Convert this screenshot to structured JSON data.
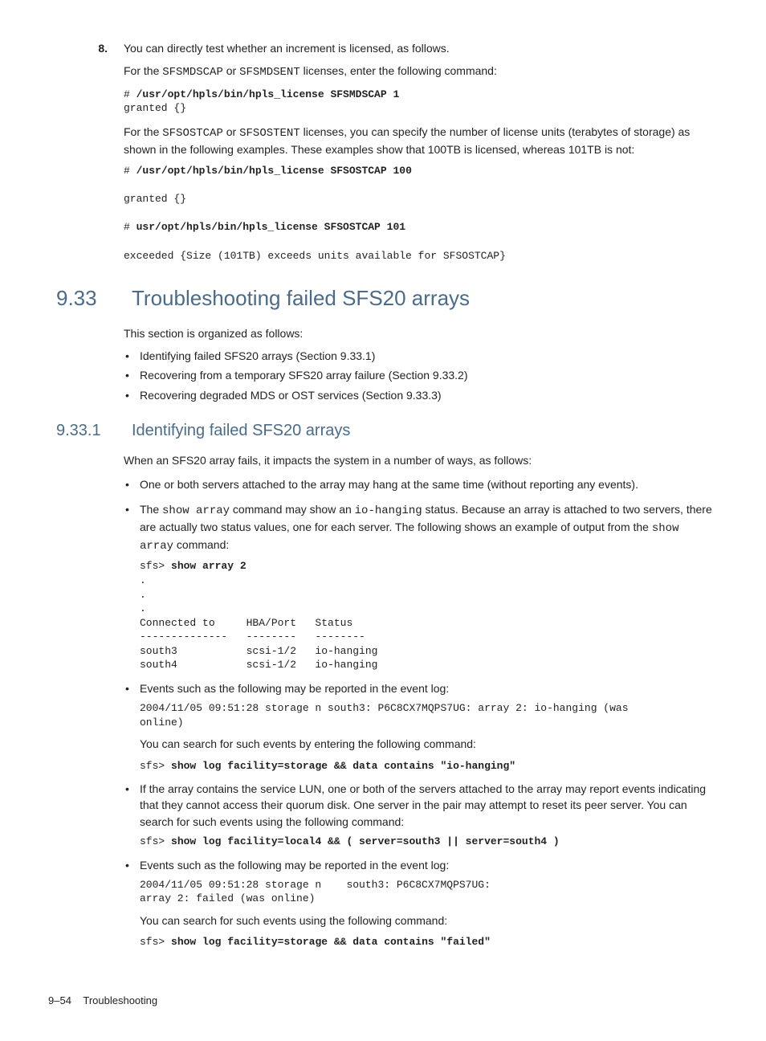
{
  "step": {
    "number": "8.",
    "lead": "You can directly test whether an increment is licensed, as follows.",
    "p1_a": "For the ",
    "p1_lic1": "SFSMDSCAP",
    "p1_b": " or ",
    "p1_lic2": "SFSMDSENT",
    "p1_c": " licenses, enter the following command:",
    "code1_prompt": "# ",
    "code1_cmd": "/usr/opt/hpls/bin/hpls_license SFSMDSCAP 1",
    "code1_out": "granted {}",
    "p2_a": "For the ",
    "p2_lic1": "SFSOSTCAP",
    "p2_b": " or ",
    "p2_lic2": "SFSOSTENT",
    "p2_c": " licenses, you can specify the number of license units (terabytes of storage) as shown in the following examples. These examples show that 100TB is licensed, whereas 101TB is not:",
    "code2_prompt": "# ",
    "code2_cmd": "/usr/opt/hpls/bin/hpls_license SFSOSTCAP 100",
    "code2_out": "granted {}",
    "code3_prompt": "# ",
    "code3_cmd": "usr/opt/hpls/bin/hpls_license SFSOSTCAP 101",
    "code3_out": "exceeded {Size (101TB) exceeds units available for SFSOSTCAP}"
  },
  "sec933": {
    "num": "9.33",
    "title": "Troubleshooting failed SFS20 arrays",
    "intro": "This section is organized as follows:",
    "items": [
      "Identifying failed SFS20 arrays (Section 9.33.1)",
      "Recovering from a temporary SFS20 array failure (Section 9.33.2)",
      "Recovering degraded MDS or OST services (Section 9.33.3)"
    ]
  },
  "sec9331": {
    "num": "9.33.1",
    "title": "Identifying failed SFS20 arrays",
    "intro": "When an SFS20 array fails, it impacts the system in a number of ways, as follows:",
    "b1": "One or both servers attached to the array may hang at the same time (without reporting any events).",
    "b2_a": "The ",
    "b2_cmd1": "show array",
    "b2_b": " command may show an ",
    "b2_cmd2": "io-hanging",
    "b2_c": " status. Because an array is attached to two servers, there are actually two status values, one for each server. The following shows an example of output from the ",
    "b2_cmd3": "show array",
    "b2_d": " command:",
    "b2_code_prompt": "sfs> ",
    "b2_code_cmd": "show array 2",
    "b2_code_body": ".\n.\n.\nConnected to     HBA/Port   Status\n--------------   --------   --------\nsouth3           scsi-1/2   io-hanging\nsouth4           scsi-1/2   io-hanging",
    "b3_text": "Events such as the following may be reported in the event log:",
    "b3_code": "2004/11/05 09:51:28 storage n south3: P6C8CX7MQPS7UG: array 2: io-hanging (was\nonline)",
    "b3_p2": "You can search for such events by entering the following command:",
    "b3_prompt": "sfs> ",
    "b3_cmd": "show log facility=storage && data contains \"io-hanging\"",
    "b4_text": "If the array contains the service LUN, one or both of the servers attached to the array may report events indicating that they cannot access their quorum disk. One server in the pair may attempt to reset its peer server. You can search for such events using the following command:",
    "b4_prompt": "sfs> ",
    "b4_cmd": "show log facility=local4 && ( server=south3 || server=south4 )",
    "b5_text": "Events such as the following may be reported in the event log:",
    "b5_code": "2004/11/05 09:51:28 storage n    south3: P6C8CX7MQPS7UG:\narray 2: failed (was online)",
    "b5_p2": "You can search for such events using the following command:",
    "b5_prompt": "sfs> ",
    "b5_cmd": "show log facility=storage && data contains \"failed\""
  },
  "footer": {
    "page": "9–54",
    "title": "Troubleshooting"
  }
}
